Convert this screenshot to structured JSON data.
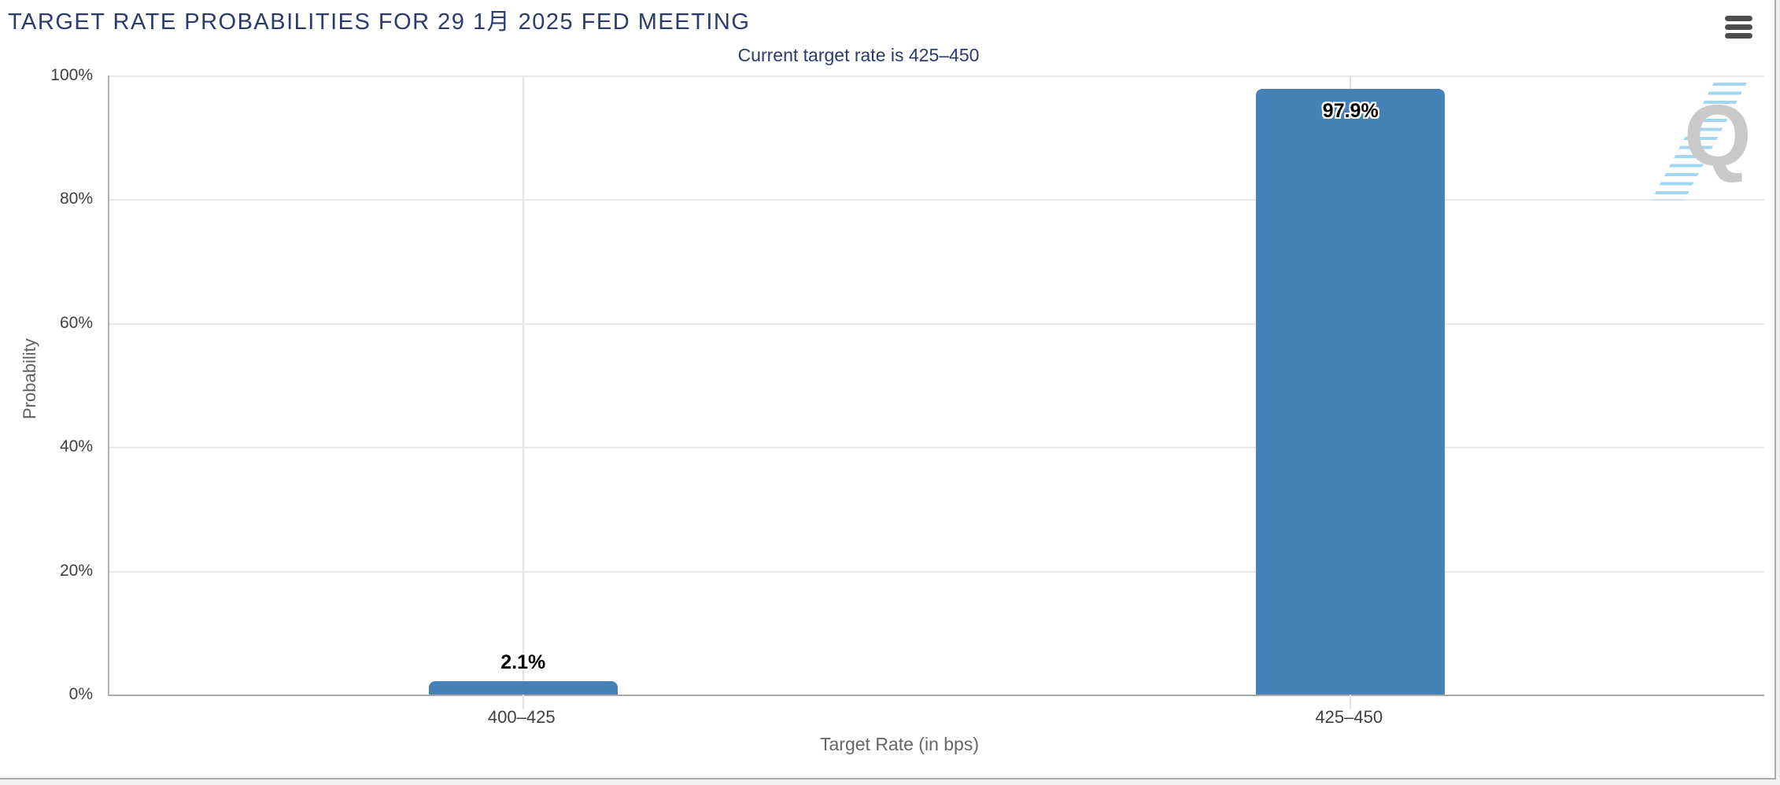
{
  "header": {
    "menu_icon": "hamburger-icon"
  },
  "chart_data": {
    "type": "bar",
    "title": "TARGET RATE PROBABILITIES FOR 29 1月 2025 FED MEETING",
    "subtitle": "Current target rate is 425–450",
    "categories": [
      "400–425",
      "425–450"
    ],
    "values": [
      2.1,
      97.9
    ],
    "bar_labels": [
      "2.1%",
      "97.9%"
    ],
    "xlabel": "Target Rate (in bps)",
    "ylabel": "Probability",
    "ylim": [
      0,
      100
    ],
    "yticks": [
      {
        "label": "0%",
        "value": 0
      },
      {
        "label": "20%",
        "value": 20
      },
      {
        "label": "40%",
        "value": 40
      },
      {
        "label": "60%",
        "value": 60
      },
      {
        "label": "80%",
        "value": 80
      },
      {
        "label": "100%",
        "value": 100
      }
    ],
    "grid": true,
    "legend": false,
    "bar_color": "#4580b6"
  },
  "watermark": {
    "letter": "Q"
  },
  "colors": {
    "title_navy": "#2b3b6b",
    "bar_blue": "#4580b6",
    "tick_text": "#3f3f3f",
    "axis_title_gray": "#666666",
    "gridline": "#e7e7e7",
    "axis_line": "#a9a9a9",
    "page_background": "#f1f1f1",
    "chart_background": "#ffffff",
    "watermark_gray": "#c9c9c9",
    "watermark_blue": "#82c8ec"
  }
}
